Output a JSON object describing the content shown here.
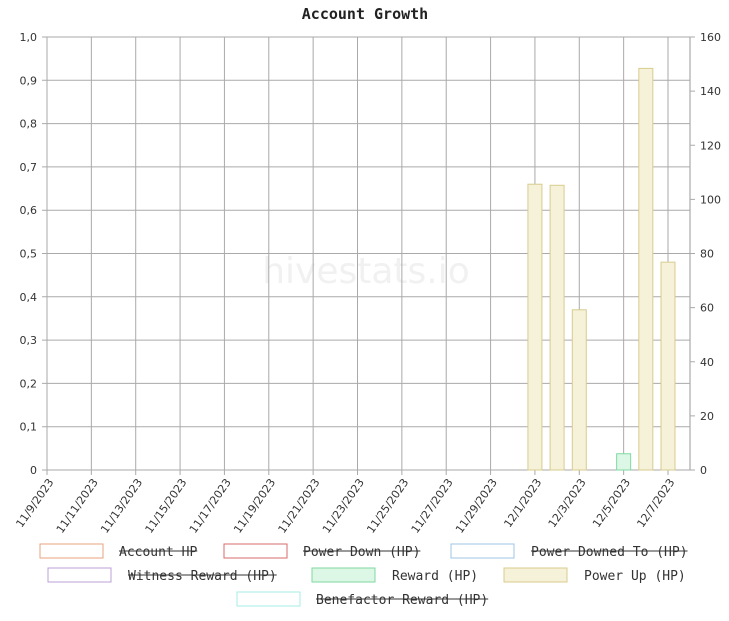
{
  "chart_data": {
    "type": "bar",
    "title": "Account Growth",
    "watermark": "hivestats.io",
    "x_tick_labels": [
      "11/9/2023",
      "11/11/2023",
      "11/13/2023",
      "11/15/2023",
      "11/17/2023",
      "11/19/2023",
      "11/21/2023",
      "11/23/2023",
      "11/25/2023",
      "11/27/2023",
      "11/29/2023",
      "12/1/2023",
      "12/3/2023",
      "12/5/2023",
      "12/7/2023"
    ],
    "y_left": {
      "ylim": [
        0,
        1.0
      ],
      "ticks": [
        "0",
        "0,1",
        "0,2",
        "0,3",
        "0,4",
        "0,5",
        "0,6",
        "0,7",
        "0,8",
        "0,9",
        "1,0"
      ]
    },
    "y_right": {
      "ylim": [
        0,
        160
      ],
      "ticks": [
        "0",
        "20",
        "40",
        "60",
        "80",
        "100",
        "120",
        "140",
        "160"
      ]
    },
    "grid": true,
    "legend_position": "bottom",
    "series": [
      {
        "name": "Account HP",
        "color": "#e8a27c",
        "hidden": true,
        "points": []
      },
      {
        "name": "Power Down (HP)",
        "color": "#d96b6b",
        "hidden": true,
        "points": []
      },
      {
        "name": "Power Downed To (HP)",
        "color": "#9ec5e6",
        "hidden": true,
        "points": []
      },
      {
        "name": "Witness Reward (HP)",
        "color": "#b9a0d4",
        "hidden": true,
        "points": []
      },
      {
        "name": "Reward (HP)",
        "color": "#7fd9a0",
        "fill": "#dcf7e6",
        "hidden": false,
        "axis": "right",
        "points": [
          {
            "x": "12/5/2023",
            "y": 6
          }
        ]
      },
      {
        "name": "Power Up (HP)",
        "color": "#d8cc8e",
        "fill": "#f6f1d9",
        "hidden": false,
        "axis": "right",
        "points": [
          {
            "x": "12/1/2023",
            "y": 105.6
          },
          {
            "x": "12/2/2023",
            "y": 105.2
          },
          {
            "x": "12/3/2023",
            "y": 59.2
          },
          {
            "x": "12/6/2023",
            "y": 148.4
          },
          {
            "x": "12/7/2023",
            "y": 76.8
          }
        ]
      },
      {
        "name": "Benefactor Reward (HP)",
        "color": "#a6ece6",
        "hidden": true,
        "points": []
      }
    ]
  }
}
